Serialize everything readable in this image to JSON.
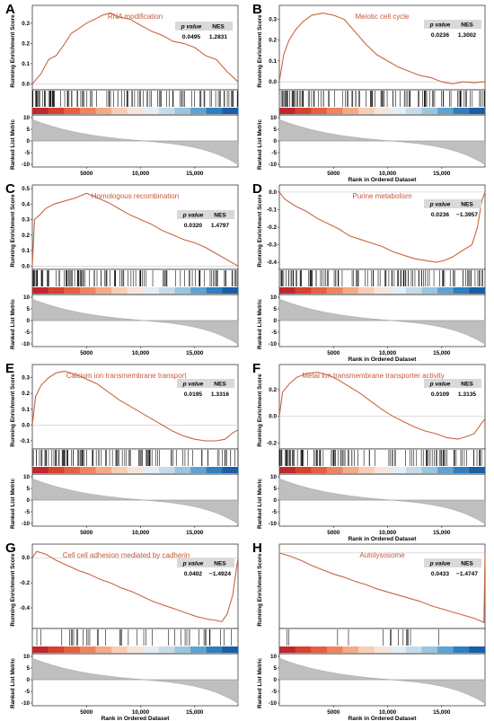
{
  "layout": {
    "cols": 2,
    "rows": 4
  },
  "stat_headers": {
    "p": "p value",
    "nes": "NES"
  },
  "curve_color": "#c8663f",
  "chart_data": [
    {
      "panel": "A",
      "type": "line",
      "title": "RNA modification",
      "ylabel": "Running Enrichment Score",
      "ylabel2": "Ranked List Metric",
      "xlabel": "",
      "x_ticks": [
        "5000",
        "10,000",
        "15,000"
      ],
      "y_ticks": [
        "0.3",
        "0.2",
        "0.1",
        "0.0"
      ],
      "y_ticks2": [
        "10",
        "5",
        "0",
        "-5",
        "-10"
      ],
      "ylim": [
        -0.02,
        0.37
      ],
      "peak_x": 7200,
      "direction": "positive",
      "sign": 1,
      "stats": {
        "p_value": "0.0495",
        "nes": "1.2831"
      },
      "points": [
        [
          0,
          0.0
        ],
        [
          800,
          0.05
        ],
        [
          1500,
          0.12
        ],
        [
          2200,
          0.14
        ],
        [
          3000,
          0.2
        ],
        [
          3600,
          0.25
        ],
        [
          4200,
          0.27
        ],
        [
          5000,
          0.3
        ],
        [
          5800,
          0.32
        ],
        [
          6500,
          0.34
        ],
        [
          7200,
          0.35
        ],
        [
          8000,
          0.33
        ],
        [
          9000,
          0.32
        ],
        [
          10000,
          0.29
        ],
        [
          11000,
          0.26
        ],
        [
          12000,
          0.24
        ],
        [
          13000,
          0.21
        ],
        [
          14000,
          0.2
        ],
        [
          15000,
          0.18
        ],
        [
          16000,
          0.14
        ],
        [
          17000,
          0.12
        ],
        [
          18000,
          0.06
        ],
        [
          19000,
          0.01
        ]
      ]
    },
    {
      "panel": "B",
      "type": "line",
      "title": "Meiotic cell cycle",
      "ylabel": "Running Enrichment Score",
      "ylabel2": "Ranked List Metric",
      "xlabel": "Rank in Ordered Dataset",
      "x_ticks": [
        "5000",
        "10,000",
        "15,000"
      ],
      "y_ticks": [
        "0.3",
        "0.2",
        "0.1",
        "0.0"
      ],
      "y_ticks2": [
        "10",
        "5",
        "0",
        "-5",
        "-10"
      ],
      "ylim": [
        -0.03,
        0.35
      ],
      "peak_x": 4000,
      "direction": "positive",
      "sign": 1,
      "stats": {
        "p_value": "0.0236",
        "nes": "1.3002"
      },
      "points": [
        [
          0,
          0.0
        ],
        [
          400,
          0.13
        ],
        [
          900,
          0.2
        ],
        [
          1500,
          0.25
        ],
        [
          2200,
          0.29
        ],
        [
          3000,
          0.32
        ],
        [
          4000,
          0.33
        ],
        [
          5000,
          0.32
        ],
        [
          6000,
          0.3
        ],
        [
          7000,
          0.24
        ],
        [
          8000,
          0.18
        ],
        [
          9000,
          0.13
        ],
        [
          10000,
          0.1
        ],
        [
          11000,
          0.07
        ],
        [
          12000,
          0.05
        ],
        [
          13000,
          0.03
        ],
        [
          14000,
          0.02
        ],
        [
          15000,
          0.0
        ],
        [
          16000,
          -0.01
        ],
        [
          17000,
          0.0
        ],
        [
          18000,
          -0.005
        ],
        [
          19000,
          0.0
        ]
      ]
    },
    {
      "panel": "C",
      "type": "line",
      "title": "Homologous recombination",
      "ylabel": "Running Enrichment Score",
      "ylabel2": "Ranked List Metric",
      "xlabel": "",
      "x_ticks": [
        "5000",
        "10,000",
        "15,000"
      ],
      "y_ticks": [
        "0.5",
        "0.4",
        "0.3",
        "0.2",
        "0.1",
        "0.0"
      ],
      "y_ticks2": [
        "10",
        "5",
        "0",
        "-5",
        "-10"
      ],
      "ylim": [
        -0.01,
        0.5
      ],
      "peak_x": 5000,
      "direction": "positive",
      "sign": 1,
      "stats": {
        "p_value": "0.0320",
        "nes": "1.4797"
      },
      "points": [
        [
          0,
          0.0
        ],
        [
          200,
          0.3
        ],
        [
          700,
          0.33
        ],
        [
          1200,
          0.37
        ],
        [
          2000,
          0.4
        ],
        [
          3000,
          0.42
        ],
        [
          4000,
          0.44
        ],
        [
          5000,
          0.47
        ],
        [
          6000,
          0.44
        ],
        [
          7000,
          0.41
        ],
        [
          8000,
          0.37
        ],
        [
          9000,
          0.33
        ],
        [
          10000,
          0.3
        ],
        [
          11000,
          0.27
        ],
        [
          12000,
          0.23
        ],
        [
          13000,
          0.2
        ],
        [
          14000,
          0.17
        ],
        [
          15000,
          0.15
        ],
        [
          16000,
          0.12
        ],
        [
          17000,
          0.08
        ],
        [
          18000,
          0.04
        ],
        [
          19000,
          0.0
        ]
      ]
    },
    {
      "panel": "D",
      "type": "line",
      "title": "Purine metabolism",
      "ylabel": "Running Enrichment Score",
      "ylabel2": "Ranked List Metric",
      "xlabel": "Rank in Ordered Dataset",
      "x_ticks": [
        "5000",
        "10,000",
        "15,000"
      ],
      "y_ticks": [
        "0.0",
        "-0.1",
        "-0.2",
        "-0.3",
        "-0.4"
      ],
      "y_ticks2": [
        "10",
        "5",
        "0",
        "-5",
        "-10"
      ],
      "ylim": [
        -0.43,
        0.02
      ],
      "peak_x": 15000,
      "direction": "negative",
      "sign": -1,
      "stats": {
        "p_value": "0.0236",
        "nes": "−1.3957"
      },
      "points": [
        [
          0,
          0.0
        ],
        [
          500,
          -0.04
        ],
        [
          1500,
          -0.08
        ],
        [
          2500,
          -0.11
        ],
        [
          3500,
          -0.15
        ],
        [
          4500,
          -0.18
        ],
        [
          5500,
          -0.21
        ],
        [
          6500,
          -0.25
        ],
        [
          7500,
          -0.27
        ],
        [
          8500,
          -0.29
        ],
        [
          9500,
          -0.31
        ],
        [
          10500,
          -0.34
        ],
        [
          11500,
          -0.36
        ],
        [
          12500,
          -0.38
        ],
        [
          13500,
          -0.39
        ],
        [
          14500,
          -0.4
        ],
        [
          15200,
          -0.39
        ],
        [
          16000,
          -0.37
        ],
        [
          17000,
          -0.33
        ],
        [
          17800,
          -0.3
        ],
        [
          18300,
          -0.2
        ],
        [
          18700,
          -0.05
        ],
        [
          19000,
          0.0
        ]
      ]
    },
    {
      "panel": "E",
      "type": "line",
      "title": "Calcium ion transmembrane transport",
      "ylabel": "Running Enrichment Score",
      "ylabel2": "Ranked List Metric",
      "xlabel": "",
      "x_ticks": [
        "5000",
        "10,000",
        "15,000"
      ],
      "y_ticks": [
        "0.3",
        "0.2",
        "0.1",
        "0.0",
        "-0.1"
      ],
      "y_ticks2": [
        "10",
        "5",
        "0",
        "-5",
        "-10"
      ],
      "ylim": [
        -0.14,
        0.36
      ],
      "peak_x": 3000,
      "direction": "positive",
      "sign": 1,
      "stats": {
        "p_value": "0.0195",
        "nes": "1.3316"
      },
      "points": [
        [
          0,
          0.0
        ],
        [
          300,
          0.18
        ],
        [
          800,
          0.25
        ],
        [
          1500,
          0.3
        ],
        [
          2200,
          0.33
        ],
        [
          3000,
          0.34
        ],
        [
          4000,
          0.32
        ],
        [
          5000,
          0.29
        ],
        [
          6000,
          0.26
        ],
        [
          7000,
          0.21
        ],
        [
          8000,
          0.16
        ],
        [
          9000,
          0.12
        ],
        [
          10000,
          0.08
        ],
        [
          11000,
          0.04
        ],
        [
          12000,
          0.0
        ],
        [
          13000,
          -0.04
        ],
        [
          14000,
          -0.07
        ],
        [
          15000,
          -0.09
        ],
        [
          16000,
          -0.1
        ],
        [
          17000,
          -0.1
        ],
        [
          17800,
          -0.09
        ],
        [
          18500,
          -0.05
        ],
        [
          19000,
          -0.03
        ]
      ]
    },
    {
      "panel": "F",
      "type": "line",
      "title": "Metal ion transmembrane transporter activity",
      "ylabel": "Running Enrichment Score",
      "ylabel2": "Ranked List Metric",
      "xlabel": "Rank in Ordered Dataset",
      "x_ticks": [
        "5000",
        "10,000",
        "15,000"
      ],
      "y_ticks": [
        "0.2",
        "0.0",
        "-0.2"
      ],
      "y_ticks2": [
        "10",
        "5",
        "0",
        "-5",
        "-10"
      ],
      "ylim": [
        -0.23,
        0.36
      ],
      "peak_x": 3500,
      "direction": "positive",
      "sign": 1,
      "stats": {
        "p_value": "0.0109",
        "nes": "1.3135"
      },
      "points": [
        [
          0,
          0.0
        ],
        [
          300,
          0.18
        ],
        [
          900,
          0.24
        ],
        [
          1600,
          0.29
        ],
        [
          2500,
          0.32
        ],
        [
          3500,
          0.33
        ],
        [
          4500,
          0.31
        ],
        [
          5500,
          0.27
        ],
        [
          6500,
          0.22
        ],
        [
          7500,
          0.17
        ],
        [
          8500,
          0.11
        ],
        [
          9500,
          0.05
        ],
        [
          10500,
          0.0
        ],
        [
          11500,
          -0.04
        ],
        [
          12500,
          -0.08
        ],
        [
          13500,
          -0.11
        ],
        [
          14500,
          -0.13
        ],
        [
          15500,
          -0.16
        ],
        [
          16500,
          -0.17
        ],
        [
          17300,
          -0.15
        ],
        [
          18000,
          -0.13
        ],
        [
          18600,
          -0.06
        ],
        [
          19000,
          -0.02
        ]
      ]
    },
    {
      "panel": "G",
      "type": "line",
      "title": "Cell cell adhesion mediated by cadherin",
      "ylabel": "Running Enrichment Score",
      "ylabel2": "Ranked List Metric",
      "xlabel": "Rank in Ordered Dataset",
      "x_ticks": [
        "5000",
        "10,000",
        "15,000"
      ],
      "y_ticks": [
        "0.0",
        "-0.2",
        "-0.4"
      ],
      "y_ticks2": [
        "10",
        "5",
        "0",
        "-5",
        "-10"
      ],
      "ylim": [
        -0.55,
        0.08
      ],
      "peak_x": 17500,
      "direction": "negative",
      "sign": -1,
      "stats": {
        "p_value": "0.0402",
        "nes": "−1.4924"
      },
      "points": [
        [
          0,
          0.0
        ],
        [
          400,
          0.05
        ],
        [
          1200,
          0.03
        ],
        [
          2200,
          -0.02
        ],
        [
          3200,
          -0.06
        ],
        [
          4200,
          -0.1
        ],
        [
          5200,
          -0.13
        ],
        [
          6200,
          -0.17
        ],
        [
          7200,
          -0.2
        ],
        [
          8200,
          -0.24
        ],
        [
          9200,
          -0.27
        ],
        [
          10200,
          -0.31
        ],
        [
          11200,
          -0.35
        ],
        [
          12200,
          -0.38
        ],
        [
          13200,
          -0.41
        ],
        [
          14200,
          -0.44
        ],
        [
          15200,
          -0.47
        ],
        [
          16200,
          -0.49
        ],
        [
          17000,
          -0.5
        ],
        [
          17500,
          -0.51
        ],
        [
          18000,
          -0.45
        ],
        [
          18500,
          -0.3
        ],
        [
          19000,
          0.0
        ]
      ]
    },
    {
      "panel": "H",
      "type": "line",
      "title": "Autolysosome",
      "ylabel": "Running Enrichment Score",
      "ylabel2": "Ranked List Metric",
      "xlabel": "Rank in Ordered Dataset",
      "x_ticks": [
        "5000",
        "10,000",
        "15,000"
      ],
      "y_ticks": [],
      "y_ticks2": [
        "10",
        "5",
        "0",
        "-5",
        "-10"
      ],
      "ylim": [
        -0.7,
        0.05
      ],
      "peak_x": 19000,
      "direction": "negative",
      "sign": -1,
      "stats": {
        "p_value": "0.0433",
        "nes": "−1.4747"
      },
      "points": [
        [
          0,
          0.0
        ],
        [
          1000,
          -0.03
        ],
        [
          2000,
          -0.07
        ],
        [
          3000,
          -0.12
        ],
        [
          4000,
          -0.16
        ],
        [
          5000,
          -0.2
        ],
        [
          6000,
          -0.23
        ],
        [
          7000,
          -0.27
        ],
        [
          8000,
          -0.3
        ],
        [
          9000,
          -0.34
        ],
        [
          10000,
          -0.37
        ],
        [
          11000,
          -0.4
        ],
        [
          12000,
          -0.43
        ],
        [
          13000,
          -0.46
        ],
        [
          14000,
          -0.5
        ],
        [
          15000,
          -0.53
        ],
        [
          16000,
          -0.56
        ],
        [
          17000,
          -0.59
        ],
        [
          18000,
          -0.62
        ],
        [
          18900,
          -0.66
        ],
        [
          19000,
          0.0
        ]
      ]
    }
  ]
}
